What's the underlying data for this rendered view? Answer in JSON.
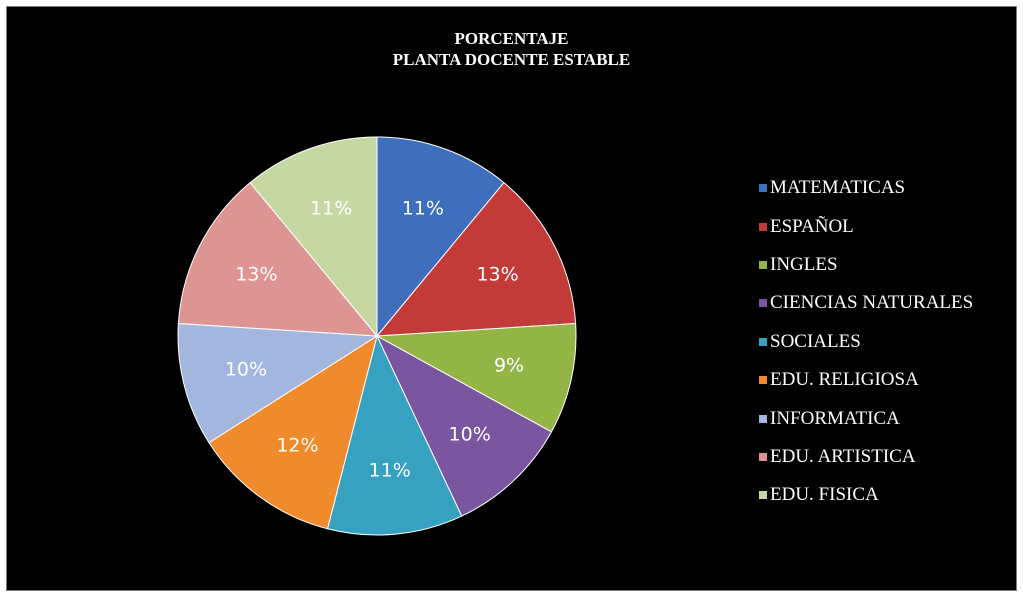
{
  "chart_data": {
    "type": "pie",
    "title_lines": [
      "PORCENTAJE",
      "PLANTA DOCENTE ESTABLE"
    ],
    "categories": [
      "MATEMATICAS",
      "ESPAÑOL",
      "INGLES",
      "CIENCIAS NATURALES",
      "SOCIALES",
      "EDU. RELIGIOSA",
      "INFORMATICA",
      "EDU. ARTISTICA",
      "EDU. FISICA"
    ],
    "values": [
      11,
      13,
      9,
      10,
      11,
      12,
      10,
      13,
      11
    ],
    "labels": [
      "11%",
      "13%",
      "9%",
      "10%",
      "11%",
      "12%",
      "10%",
      "13%",
      "11%"
    ],
    "colors": [
      "#3f6fbc",
      "#c23b38",
      "#93b545",
      "#7a55a0",
      "#36a1c0",
      "#ef8a2d",
      "#a3b7de",
      "#dd9594",
      "#c5d8a1"
    ],
    "legend_position": "right"
  }
}
